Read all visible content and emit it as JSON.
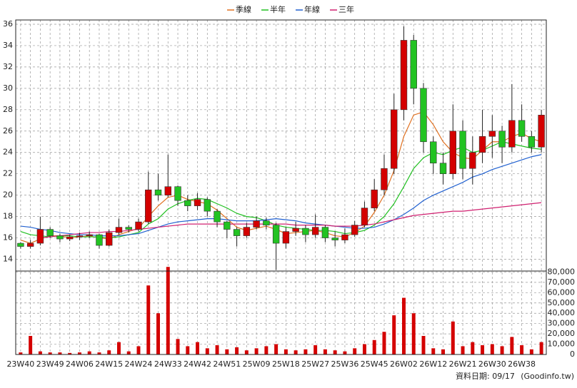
{
  "chart_data": [
    {
      "type": "candlestick",
      "categories": [
        "23W40",
        null,
        null,
        "23W49",
        null,
        null,
        "24W06",
        null,
        null,
        "24W15",
        null,
        null,
        "24W24",
        null,
        null,
        "24W33",
        null,
        null,
        "24W42",
        null,
        null,
        "24W51",
        null,
        null,
        "25W09",
        null,
        null,
        "25W18",
        null,
        null,
        "25W27",
        null,
        null,
        "25W36",
        null,
        null,
        "25W45",
        null,
        null,
        "26W02",
        null,
        null,
        "26W12",
        null,
        null,
        "26W21",
        null,
        null,
        "26W30",
        null,
        null,
        "26W38",
        null,
        null
      ],
      "open": [
        15.5,
        15.2,
        15.5,
        16.8,
        16.2,
        15.9,
        16.1,
        16.2,
        16.3,
        15.3,
        16.5,
        17.0,
        16.8,
        17.5,
        20.5,
        20.0,
        20.8,
        19.5,
        19.0,
        19.6,
        18.5,
        17.5,
        16.8,
        16.2,
        17.0,
        17.6,
        17.2,
        15.5,
        16.6,
        16.9,
        16.3,
        17.0,
        16.0,
        15.8,
        16.3,
        17.2,
        18.8,
        20.5,
        22.5,
        28.0,
        34.5,
        30.0,
        25.0,
        23.0,
        22.0,
        26.0,
        22.5,
        24.0,
        25.5,
        26.0,
        24.5,
        27.0,
        25.5,
        24.5
      ],
      "high": [
        15.6,
        15.8,
        18.0,
        17.0,
        16.4,
        16.3,
        16.5,
        16.6,
        16.4,
        16.8,
        17.8,
        17.2,
        17.8,
        22.2,
        22.0,
        23.8,
        20.9,
        20.0,
        20.2,
        19.8,
        18.7,
        17.6,
        17.0,
        17.4,
        18.0,
        17.9,
        17.4,
        17.0,
        17.5,
        17.2,
        18.2,
        17.2,
        16.6,
        16.9,
        17.6,
        19.4,
        21.5,
        23.8,
        29.5,
        35.8,
        35.0,
        30.5,
        25.5,
        24.0,
        28.5,
        27.0,
        25.5,
        28.0,
        27.5,
        26.5,
        30.4,
        28.5,
        26.0,
        28.0
      ],
      "low": [
        15.0,
        15.0,
        15.3,
        16.0,
        15.6,
        15.7,
        15.8,
        16.0,
        15.0,
        15.2,
        16.3,
        16.5,
        16.6,
        17.3,
        19.5,
        19.8,
        19.0,
        18.5,
        18.6,
        18.0,
        17.0,
        16.0,
        15.2,
        16.0,
        16.8,
        16.8,
        13.0,
        15.0,
        16.2,
        15.6,
        16.0,
        15.6,
        15.2,
        15.5,
        16.1,
        17.0,
        18.5,
        20.0,
        22.0,
        27.0,
        28.5,
        24.0,
        22.0,
        21.0,
        21.5,
        21.5,
        21.0,
        23.0,
        23.5,
        23.0,
        24.0,
        25.0,
        24.0,
        24.0
      ],
      "close": [
        15.2,
        15.5,
        16.8,
        16.2,
        15.9,
        16.1,
        16.2,
        16.3,
        15.3,
        16.5,
        17.0,
        16.8,
        17.5,
        20.5,
        20.0,
        20.8,
        19.5,
        19.0,
        19.6,
        18.5,
        17.5,
        16.8,
        16.2,
        17.0,
        17.6,
        17.2,
        15.5,
        16.6,
        16.9,
        16.3,
        17.0,
        16.0,
        15.8,
        16.3,
        17.2,
        18.8,
        20.5,
        22.5,
        28.0,
        34.5,
        30.0,
        25.0,
        23.0,
        22.0,
        26.0,
        22.5,
        24.0,
        25.5,
        26.0,
        24.5,
        27.0,
        25.5,
        24.5,
        27.5
      ],
      "up_color": "#d40000",
      "down_color": "#22c322",
      "series": [
        {
          "name": "季線",
          "color": "#e07020",
          "values": [
            15.8,
            15.5,
            15.9,
            16.2,
            16.2,
            16.0,
            16.1,
            16.2,
            16.0,
            15.9,
            16.3,
            16.6,
            16.9,
            18.0,
            19.0,
            19.8,
            20.0,
            19.6,
            19.4,
            19.2,
            18.6,
            17.8,
            17.0,
            16.7,
            16.9,
            17.1,
            16.8,
            16.4,
            16.5,
            16.6,
            16.7,
            16.5,
            16.2,
            16.1,
            16.5,
            17.1,
            18.4,
            20.0,
            22.3,
            25.5,
            27.5,
            27.8,
            26.6,
            25.0,
            24.0,
            23.5,
            23.4,
            24.2,
            25.0,
            25.0,
            25.5,
            25.8,
            25.3,
            25.0
          ]
        },
        {
          "name": "半年",
          "color": "#20c020",
          "values": [
            16.6,
            16.3,
            16.2,
            16.1,
            16.2,
            16.2,
            16.1,
            16.1,
            16.1,
            16.0,
            16.1,
            16.3,
            16.5,
            17.3,
            17.8,
            18.7,
            19.2,
            19.5,
            19.7,
            19.6,
            19.2,
            18.8,
            18.3,
            18.0,
            17.9,
            17.6,
            17.2,
            17.0,
            16.9,
            16.8,
            16.7,
            16.7,
            16.6,
            16.4,
            16.5,
            16.7,
            17.2,
            18.0,
            19.2,
            20.8,
            22.5,
            23.5,
            24.0,
            23.8,
            24.2,
            24.5,
            24.0,
            24.2,
            24.6,
            25.0,
            24.8,
            24.6,
            24.4,
            24.3
          ]
        },
        {
          "name": "年線",
          "color": "#2060d0",
          "values": [
            17.1,
            17.0,
            16.8,
            16.7,
            16.5,
            16.4,
            16.3,
            16.3,
            16.2,
            16.2,
            16.2,
            16.3,
            16.4,
            16.7,
            17.0,
            17.3,
            17.5,
            17.6,
            17.7,
            17.8,
            17.8,
            17.7,
            17.6,
            17.6,
            17.6,
            17.7,
            17.8,
            17.7,
            17.6,
            17.4,
            17.3,
            17.2,
            17.1,
            17.0,
            16.9,
            16.9,
            17.0,
            17.3,
            17.7,
            18.2,
            18.8,
            19.5,
            20.0,
            20.4,
            20.8,
            21.2,
            21.7,
            22.0,
            22.4,
            22.7,
            23.0,
            23.3,
            23.6,
            23.8
          ]
        },
        {
          "name": "三年",
          "color": "#d02070",
          "values": [
            null,
            null,
            16.0,
            16.1,
            16.2,
            16.3,
            16.4,
            16.5,
            16.5,
            16.6,
            16.6,
            16.7,
            16.8,
            16.9,
            17.0,
            17.1,
            17.2,
            17.3,
            17.3,
            17.3,
            17.3,
            17.3,
            17.3,
            17.3,
            17.3,
            17.3,
            17.3,
            17.3,
            17.2,
            17.2,
            17.2,
            17.2,
            17.1,
            17.1,
            17.1,
            17.2,
            17.3,
            17.5,
            17.7,
            17.9,
            18.1,
            18.2,
            18.3,
            18.4,
            18.5,
            18.5,
            18.6,
            18.7,
            18.8,
            18.9,
            19.0,
            19.1,
            19.2,
            19.3
          ]
        }
      ],
      "ylim": [
        12.9,
        36.4
      ],
      "yticks": [
        14,
        16,
        18,
        20,
        22,
        24,
        26,
        28,
        30,
        32,
        34,
        36
      ],
      "grid": true
    },
    {
      "type": "bar",
      "color": "#d40000",
      "values": [
        2000,
        18000,
        3000,
        2000,
        2000,
        1500,
        2000,
        3000,
        2000,
        4000,
        12000,
        3000,
        8000,
        67000,
        40000,
        85000,
        15000,
        8000,
        12000,
        6000,
        9000,
        5000,
        7000,
        4000,
        6000,
        8000,
        10000,
        5000,
        4000,
        5000,
        9000,
        5000,
        4000,
        3000,
        6000,
        10000,
        14000,
        22000,
        38000,
        55000,
        40000,
        18000,
        6000,
        5000,
        32000,
        8000,
        12000,
        9000,
        10000,
        8000,
        17000,
        9000,
        5000,
        12000
      ],
      "ylim": [
        0,
        81000
      ],
      "yticks": [
        0,
        {
          "value": 10000,
          "label": "10,000"
        },
        {
          "value": 20000,
          "label": "20,000"
        },
        {
          "value": 30000,
          "label": "30,000"
        },
        {
          "value": 40000,
          "label": "40,000"
        },
        {
          "value": 50000,
          "label": "50,000"
        },
        {
          "value": 60000,
          "label": "60,000"
        },
        {
          "value": 70000,
          "label": "70,000"
        },
        {
          "value": 80000,
          "label": "80,000"
        }
      ],
      "footer_date": "資料日期: 09/17",
      "footer_source": "(Goodinfo.tw)"
    }
  ]
}
